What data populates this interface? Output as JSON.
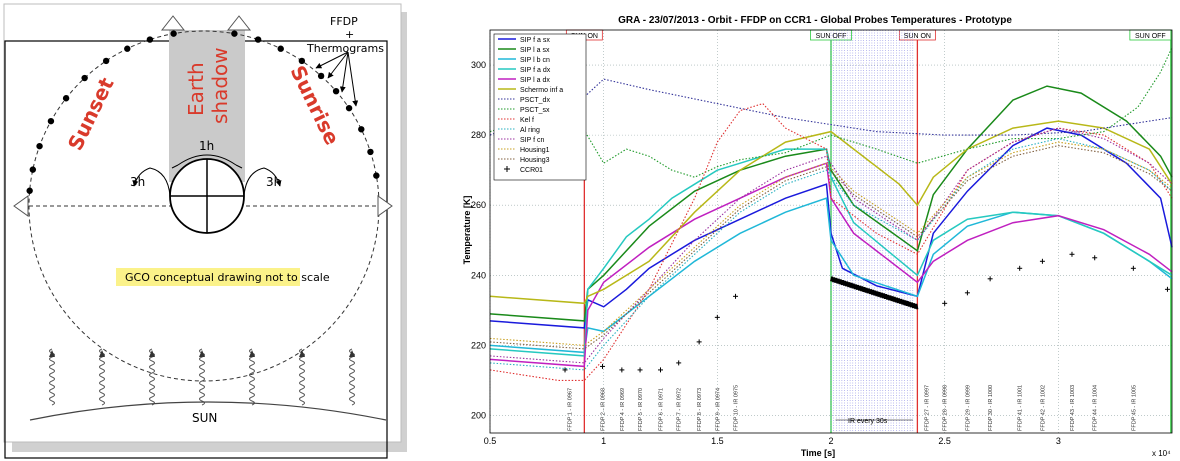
{
  "diagram": {
    "ffdp_label": "FFDP",
    "plus": "+",
    "thermograms": "Thermograms",
    "sunset": "Sunset",
    "sunrise": "Sunrise",
    "earth": "Earth",
    "shadow": "shadow",
    "one_h": "1h",
    "three_h_left": "3h",
    "three_h_right": "3h",
    "note": "GCO conceptual drawing not to scale",
    "sun": "SUN",
    "colors": {
      "red": "#d93a2b",
      "shadow": "#c8c8c8",
      "note_bg": "#fbf28a"
    }
  },
  "chart_data": {
    "type": "line",
    "title": "GRA - 23/07/2013 - Orbit - FFDP on CCR1 - Global Probes Temperatures - Prototype",
    "xlabel": "Time [s]",
    "ylabel": "Temperature [K]",
    "x_multiplier": "x 10⁴",
    "xlim": [
      0.5,
      3.5
    ],
    "ylim": [
      195,
      310
    ],
    "xticks": [
      "0.5",
      "1",
      "1.5",
      "2",
      "2.5",
      "3"
    ],
    "yticks": [
      "200",
      "220",
      "240",
      "260",
      "280",
      "300"
    ],
    "grid": true,
    "legend_position": "top-left",
    "markers": [
      {
        "label": "SUN ON",
        "x": 0.915,
        "color": "#e03030"
      },
      {
        "label": "SUN OFF",
        "x": 2.0,
        "color": "#2ecc40"
      },
      {
        "label": "SUN ON",
        "x": 2.38,
        "color": "#e03030"
      },
      {
        "label": "SUN OFF",
        "x": 3.5,
        "color": "#2ecc40"
      }
    ],
    "ir_note": "IR every 30s",
    "ffdp_labels": [
      "FFDP 1 - IR 0967",
      "FFDP 2 - IR 0968",
      "FFDP 4 - IR 0969",
      "FFDP 5 - IR 0970",
      "FFDP 6 - IR 0971",
      "FFDP 7 - IR 0972",
      "FFDP 8 - IR 0973",
      "FFDP 9 - IR 0974",
      "FFDP 10 - IR 0975",
      "FFDP 27 - IR 0997",
      "FFDP 28 - IR 0998",
      "FFDP 29 - IR 0999",
      "FFDP 30 - IR 1000",
      "FFDP 41 - IR 1001",
      "FFDP 42 - IR 1002",
      "FFDP 43 - IR 1003",
      "FFDP 44 - IR 1004",
      "FFDP 45 - IR 1005"
    ],
    "series": [
      {
        "name": "SIP f a sx",
        "color": "#1a1adc",
        "style": "solid",
        "points": [
          [
            0.5,
            227
          ],
          [
            0.915,
            225
          ],
          [
            0.93,
            233
          ],
          [
            1.0,
            231
          ],
          [
            1.1,
            236
          ],
          [
            1.2,
            242
          ],
          [
            1.4,
            250
          ],
          [
            1.6,
            256
          ],
          [
            1.8,
            262
          ],
          [
            1.98,
            266
          ],
          [
            2.0,
            252
          ],
          [
            2.05,
            242
          ],
          [
            2.2,
            237
          ],
          [
            2.38,
            234
          ],
          [
            2.45,
            252
          ],
          [
            2.6,
            264
          ],
          [
            2.8,
            277
          ],
          [
            2.95,
            282
          ],
          [
            3.1,
            280
          ],
          [
            3.3,
            272
          ],
          [
            3.45,
            262
          ],
          [
            3.5,
            248
          ]
        ]
      },
      {
        "name": "SIP l a sx",
        "color": "#1a8a1a",
        "style": "solid",
        "points": [
          [
            0.5,
            229
          ],
          [
            0.915,
            227
          ],
          [
            0.93,
            236
          ],
          [
            1.0,
            240
          ],
          [
            1.2,
            254
          ],
          [
            1.4,
            264
          ],
          [
            1.6,
            270
          ],
          [
            1.8,
            274
          ],
          [
            1.98,
            276
          ],
          [
            2.0,
            270
          ],
          [
            2.1,
            260
          ],
          [
            2.38,
            247
          ],
          [
            2.45,
            263
          ],
          [
            2.6,
            276
          ],
          [
            2.8,
            290
          ],
          [
            2.95,
            294
          ],
          [
            3.1,
            292
          ],
          [
            3.3,
            284
          ],
          [
            3.45,
            274
          ],
          [
            3.5,
            268
          ]
        ]
      },
      {
        "name": "SIP l b cn",
        "color": "#20b8d8",
        "style": "solid",
        "points": [
          [
            0.5,
            220
          ],
          [
            0.915,
            218
          ],
          [
            0.93,
            225
          ],
          [
            1.0,
            224
          ],
          [
            1.2,
            234
          ],
          [
            1.4,
            244
          ],
          [
            1.6,
            252
          ],
          [
            1.8,
            258
          ],
          [
            1.98,
            262
          ],
          [
            2.0,
            250
          ],
          [
            2.1,
            240
          ],
          [
            2.38,
            234
          ],
          [
            2.45,
            246
          ],
          [
            2.6,
            254
          ],
          [
            2.8,
            258
          ],
          [
            3.0,
            257
          ],
          [
            3.2,
            252
          ],
          [
            3.4,
            244
          ],
          [
            3.5,
            239
          ]
        ]
      },
      {
        "name": "SIP f a dx",
        "color": "#26c9c0",
        "style": "solid",
        "points": [
          [
            0.5,
            219
          ],
          [
            0.915,
            217
          ],
          [
            0.93,
            236
          ],
          [
            1.0,
            242
          ],
          [
            1.1,
            251
          ],
          [
            1.2,
            256
          ],
          [
            1.3,
            262
          ],
          [
            1.4,
            266
          ],
          [
            1.5,
            270
          ],
          [
            1.6,
            272
          ],
          [
            1.8,
            276
          ],
          [
            1.98,
            276
          ],
          [
            2.0,
            268
          ],
          [
            2.1,
            255
          ],
          [
            2.38,
            240
          ],
          [
            2.45,
            250
          ],
          [
            2.6,
            256
          ],
          [
            2.8,
            258
          ],
          [
            3.0,
            257
          ],
          [
            3.2,
            252
          ],
          [
            3.4,
            244
          ],
          [
            3.5,
            240
          ]
        ]
      },
      {
        "name": "SIP l a dx",
        "color": "#c020c0",
        "style": "solid",
        "points": [
          [
            0.5,
            216
          ],
          [
            0.915,
            214
          ],
          [
            0.93,
            230
          ],
          [
            1.0,
            238
          ],
          [
            1.2,
            248
          ],
          [
            1.4,
            256
          ],
          [
            1.6,
            262
          ],
          [
            1.8,
            268
          ],
          [
            1.98,
            272
          ],
          [
            2.0,
            262
          ],
          [
            2.1,
            252
          ],
          [
            2.38,
            238
          ],
          [
            2.45,
            244
          ],
          [
            2.6,
            250
          ],
          [
            2.8,
            255
          ],
          [
            3.0,
            257
          ],
          [
            3.2,
            253
          ],
          [
            3.4,
            246
          ],
          [
            3.5,
            241
          ]
        ]
      },
      {
        "name": "Schermo inf a",
        "color": "#b8b818",
        "style": "solid",
        "points": [
          [
            0.5,
            234
          ],
          [
            0.915,
            232
          ],
          [
            0.93,
            234
          ],
          [
            1.0,
            236
          ],
          [
            1.2,
            244
          ],
          [
            1.4,
            258
          ],
          [
            1.6,
            270
          ],
          [
            1.8,
            278
          ],
          [
            2.0,
            281
          ],
          [
            2.1,
            276
          ],
          [
            2.3,
            266
          ],
          [
            2.38,
            260
          ],
          [
            2.45,
            268
          ],
          [
            2.6,
            276
          ],
          [
            2.8,
            282
          ],
          [
            3.0,
            284
          ],
          [
            3.2,
            282
          ],
          [
            3.4,
            276
          ],
          [
            3.5,
            266
          ]
        ]
      },
      {
        "name": "PSCT_dx",
        "color": "#333399",
        "style": "dotted",
        "points": [
          [
            0.5,
            280
          ],
          [
            0.9,
            290
          ],
          [
            1.0,
            296
          ],
          [
            1.2,
            293
          ],
          [
            1.5,
            289
          ],
          [
            1.8,
            285
          ],
          [
            2.0,
            283
          ],
          [
            2.2,
            281
          ],
          [
            2.5,
            280
          ],
          [
            2.8,
            280
          ],
          [
            3.1,
            281
          ],
          [
            3.3,
            283
          ],
          [
            3.5,
            285
          ]
        ]
      },
      {
        "name": "PSCT_sx",
        "color": "#1f9a2a",
        "style": "dotted",
        "points": [
          [
            0.5,
            281
          ],
          [
            0.7,
            285
          ],
          [
            0.9,
            283
          ],
          [
            1.0,
            272
          ],
          [
            1.1,
            276
          ],
          [
            1.2,
            274
          ],
          [
            1.3,
            270
          ],
          [
            1.4,
            268
          ],
          [
            1.5,
            271
          ],
          [
            1.6,
            273
          ],
          [
            1.8,
            275
          ],
          [
            2.0,
            280
          ],
          [
            2.2,
            276
          ],
          [
            2.38,
            272
          ],
          [
            2.6,
            276
          ],
          [
            2.8,
            279
          ],
          [
            3.0,
            279
          ],
          [
            3.2,
            281
          ],
          [
            3.35,
            288
          ],
          [
            3.45,
            298
          ],
          [
            3.5,
            305
          ]
        ]
      },
      {
        "name": "Kel f",
        "color": "#e03030",
        "style": "dotted",
        "points": [
          [
            0.5,
            213
          ],
          [
            0.8,
            210
          ],
          [
            0.915,
            210
          ],
          [
            1.0,
            216
          ],
          [
            1.2,
            236
          ],
          [
            1.4,
            262
          ],
          [
            1.5,
            278
          ],
          [
            1.6,
            287
          ],
          [
            1.7,
            289
          ],
          [
            1.8,
            282
          ],
          [
            1.98,
            276
          ],
          [
            2.0,
            262
          ],
          [
            2.2,
            252
          ],
          [
            2.38,
            246
          ],
          [
            2.6,
            270
          ],
          [
            2.8,
            278
          ],
          [
            3.0,
            282
          ],
          [
            3.2,
            280
          ],
          [
            3.4,
            272
          ],
          [
            3.5,
            262
          ]
        ]
      },
      {
        "name": "Al ring",
        "color": "#27b0c0",
        "style": "dotted",
        "points": [
          [
            0.5,
            215
          ],
          [
            0.915,
            213
          ],
          [
            1.0,
            220
          ],
          [
            1.2,
            234
          ],
          [
            1.4,
            246
          ],
          [
            1.6,
            258
          ],
          [
            1.8,
            266
          ],
          [
            1.98,
            270
          ],
          [
            2.1,
            260
          ],
          [
            2.38,
            250
          ],
          [
            2.6,
            268
          ],
          [
            2.8,
            276
          ],
          [
            3.0,
            279
          ],
          [
            3.2,
            276
          ],
          [
            3.4,
            270
          ],
          [
            3.5,
            264
          ]
        ]
      },
      {
        "name": "SIP f cn",
        "color": "#9b30a0",
        "style": "dotted",
        "points": [
          [
            0.5,
            217
          ],
          [
            0.915,
            215
          ],
          [
            1.0,
            222
          ],
          [
            1.2,
            236
          ],
          [
            1.4,
            250
          ],
          [
            1.6,
            262
          ],
          [
            1.8,
            270
          ],
          [
            1.98,
            274
          ],
          [
            2.1,
            262
          ],
          [
            2.38,
            250
          ],
          [
            2.6,
            270
          ],
          [
            2.8,
            278
          ],
          [
            3.0,
            282
          ],
          [
            3.2,
            279
          ],
          [
            3.4,
            272
          ],
          [
            3.5,
            266
          ]
        ]
      },
      {
        "name": "Housing1",
        "color": "#c8a020",
        "style": "dotted",
        "points": [
          [
            0.5,
            222
          ],
          [
            0.915,
            220
          ],
          [
            1.0,
            224
          ],
          [
            1.2,
            236
          ],
          [
            1.4,
            248
          ],
          [
            1.6,
            260
          ],
          [
            1.8,
            268
          ],
          [
            1.98,
            272
          ],
          [
            2.1,
            264
          ],
          [
            2.38,
            252
          ],
          [
            2.6,
            268
          ],
          [
            2.8,
            275
          ],
          [
            3.0,
            278
          ],
          [
            3.2,
            276
          ],
          [
            3.4,
            270
          ],
          [
            3.5,
            265
          ]
        ]
      },
      {
        "name": "Housing3",
        "color": "#806040",
        "style": "dotted",
        "points": [
          [
            0.5,
            221
          ],
          [
            0.915,
            219
          ],
          [
            1.0,
            223
          ],
          [
            1.2,
            235
          ],
          [
            1.4,
            247
          ],
          [
            1.6,
            259
          ],
          [
            1.8,
            267
          ],
          [
            1.98,
            271
          ],
          [
            2.1,
            263
          ],
          [
            2.38,
            251
          ],
          [
            2.6,
            267
          ],
          [
            2.8,
            274
          ],
          [
            3.0,
            277
          ],
          [
            3.2,
            275
          ],
          [
            3.4,
            269
          ],
          [
            3.5,
            264
          ]
        ]
      },
      {
        "name": "CCR01",
        "color": "#000000",
        "style": "markers",
        "points": [
          [
            0.83,
            213
          ],
          [
            0.995,
            214
          ],
          [
            1.08,
            213
          ],
          [
            1.16,
            213
          ],
          [
            1.25,
            213
          ],
          [
            1.33,
            215
          ],
          [
            1.42,
            221
          ],
          [
            1.5,
            228
          ],
          [
            1.58,
            234
          ],
          [
            2.5,
            232
          ],
          [
            2.6,
            235
          ],
          [
            2.7,
            239
          ],
          [
            2.83,
            242
          ],
          [
            2.93,
            244
          ],
          [
            3.06,
            246
          ],
          [
            3.16,
            245
          ],
          [
            3.33,
            242
          ],
          [
            3.48,
            236
          ]
        ]
      }
    ],
    "ccr_dense": {
      "x_start": 2.0,
      "x_end": 2.38,
      "y_start": 239,
      "y_end": 231
    }
  }
}
